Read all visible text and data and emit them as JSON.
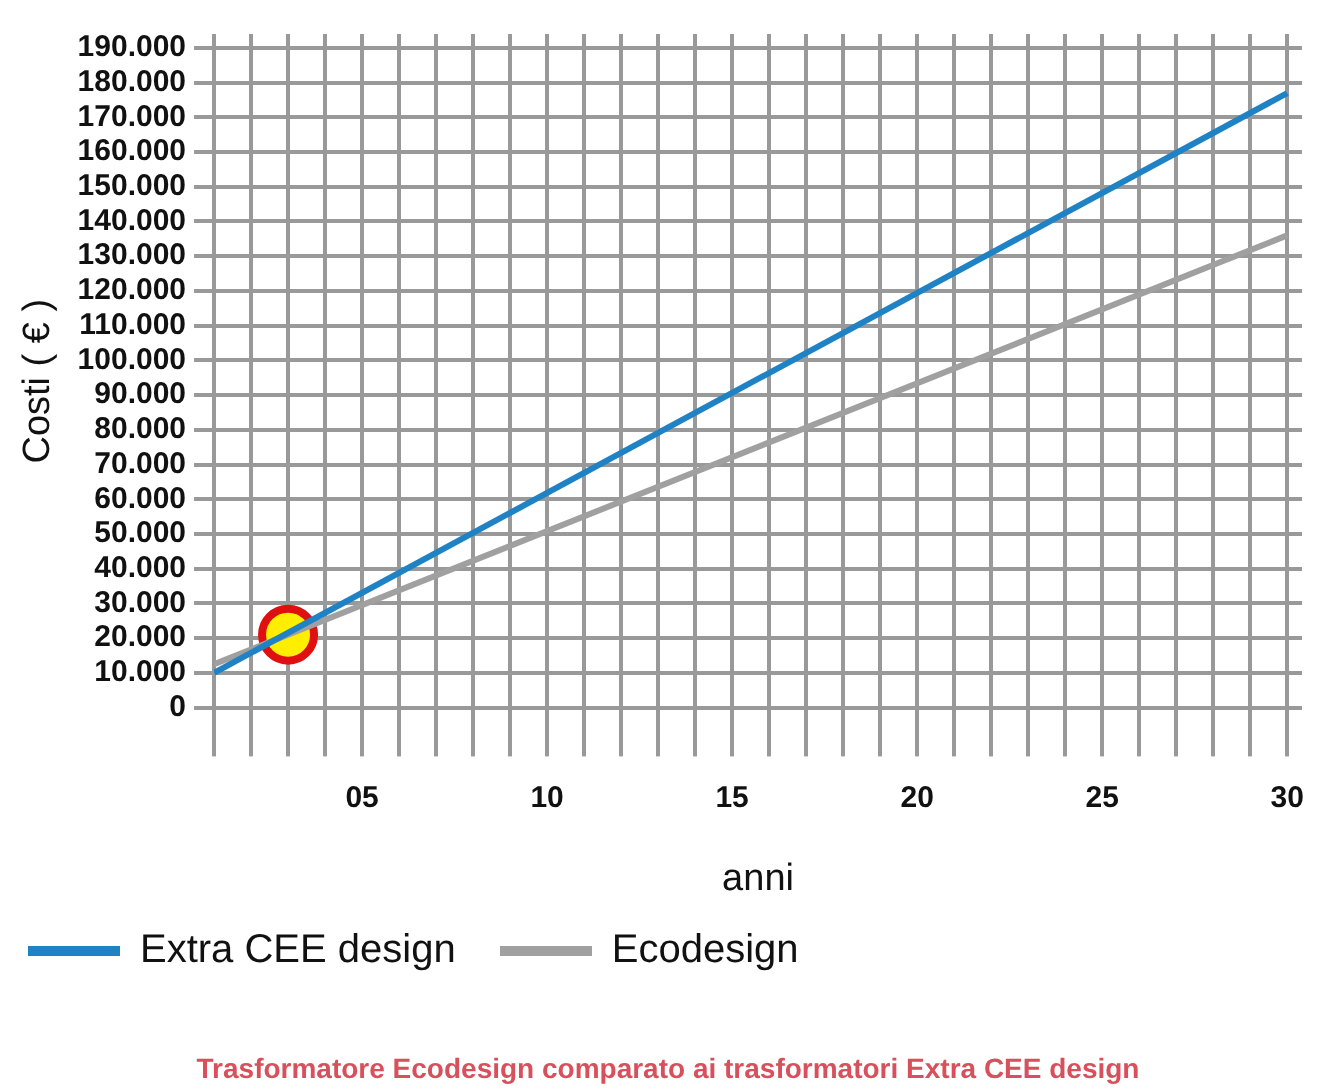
{
  "chart_data": {
    "type": "line",
    "title": "Trasformatore Ecodesign comparato ai trasformatori Extra CEE design",
    "xlabel": "anni",
    "ylabel": "Costi ( € )",
    "x": [
      1,
      30
    ],
    "series": [
      {
        "name": "Extra CEE design",
        "color": "#1f82c4",
        "values": [
          10000,
          177000
        ]
      },
      {
        "name": "Ecodesign",
        "color": "#a0a0a0",
        "values": [
          12500,
          136000
        ]
      },
      {
        "type": "scatter",
        "x": [
          3
        ],
        "color": "#ffee00",
        "marker": "circle",
        "values": [
          21000
        ]
      }
    ],
    "xlim": [
      1,
      30.4
    ],
    "xticks": [
      {
        "value": 1,
        "label": null
      },
      {
        "value": 2,
        "label": null
      },
      {
        "value": 3,
        "label": null
      },
      {
        "value": 4,
        "label": null
      },
      {
        "value": 5,
        "label": "05"
      },
      {
        "value": 6,
        "label": null
      },
      {
        "value": 7,
        "label": null
      },
      {
        "value": 8,
        "label": null
      },
      {
        "value": 9,
        "label": null
      },
      {
        "value": 10,
        "label": "10"
      },
      {
        "value": 11,
        "label": null
      },
      {
        "value": 12,
        "label": null
      },
      {
        "value": 13,
        "label": null
      },
      {
        "value": 14,
        "label": null
      },
      {
        "value": 15,
        "label": "15"
      },
      {
        "value": 16,
        "label": null
      },
      {
        "value": 17,
        "label": null
      },
      {
        "value": 18,
        "label": null
      },
      {
        "value": 19,
        "label": null
      },
      {
        "value": 20,
        "label": "20"
      },
      {
        "value": 21,
        "label": null
      },
      {
        "value": 22,
        "label": null
      },
      {
        "value": 23,
        "label": null
      },
      {
        "value": 24,
        "label": null
      },
      {
        "value": 25,
        "label": "25"
      },
      {
        "value": 26,
        "label": null
      },
      {
        "value": 27,
        "label": null
      },
      {
        "value": 28,
        "label": null
      },
      {
        "value": 29,
        "label": null
      },
      {
        "value": 30,
        "label": "30"
      }
    ],
    "ylim": [
      -6000,
      194000
    ],
    "yticks": [
      {
        "value": 0,
        "label": "0"
      },
      {
        "value": 10000,
        "label": "10.000"
      },
      {
        "value": 20000,
        "label": "20.000"
      },
      {
        "value": 30000,
        "label": "30.000"
      },
      {
        "value": 40000,
        "label": "40.000"
      },
      {
        "value": 50000,
        "label": "50.000"
      },
      {
        "value": 60000,
        "label": "60.000"
      },
      {
        "value": 70000,
        "label": "70.000"
      },
      {
        "value": 80000,
        "label": "80.000"
      },
      {
        "value": 90000,
        "label": "90.000"
      },
      {
        "value": 100000,
        "label": "100.000"
      },
      {
        "value": 110000,
        "label": "110.000"
      },
      {
        "value": 120000,
        "label": "120.000"
      },
      {
        "value": 130000,
        "label": "130.000"
      },
      {
        "value": 140000,
        "label": "140.000"
      },
      {
        "value": 150000,
        "label": "150.000"
      },
      {
        "value": 160000,
        "label": "160.000"
      },
      {
        "value": 170000,
        "label": "170.000"
      },
      {
        "value": 180000,
        "label": "180.000"
      },
      {
        "value": 190000,
        "label": "190.000"
      }
    ],
    "grid": true,
    "legend": "bottom left",
    "marker": "none",
    "line_style": "solid"
  }
}
